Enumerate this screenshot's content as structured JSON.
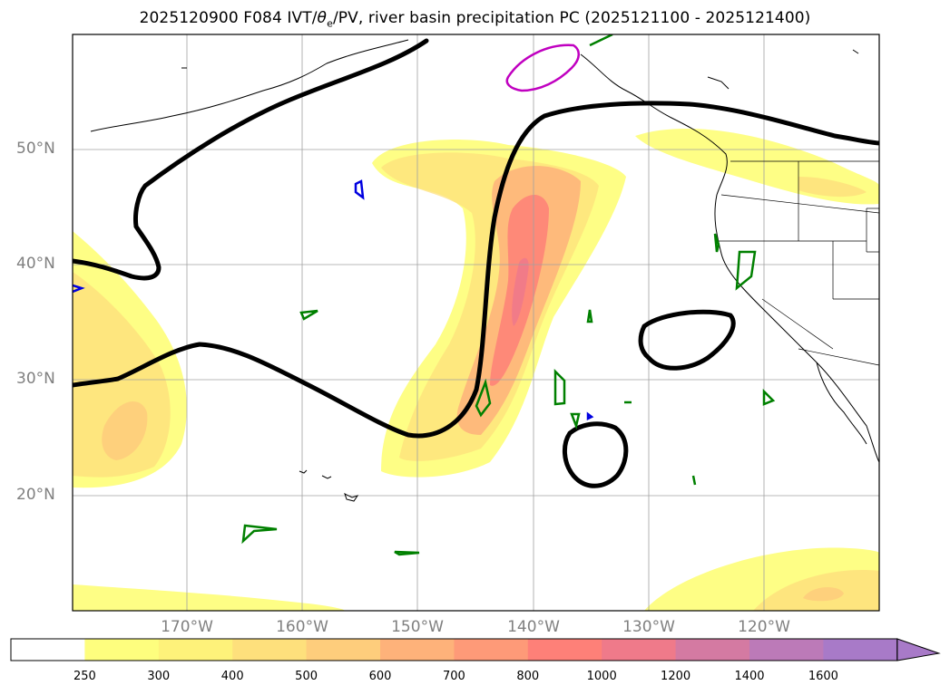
{
  "title": {
    "prefix": "2025120900 F084 IVT/",
    "theta": "θ",
    "sub": "e",
    "suffix": "/PV, river basin precipitation PC (2025121100 - 2025121400)"
  },
  "axes": {
    "lat_labels": [
      "50°N",
      "40°N",
      "30°N",
      "20°N"
    ],
    "lon_labels": [
      "170°W",
      "160°W",
      "150°W",
      "140°W",
      "130°W",
      "120°W"
    ]
  },
  "colorbar": {
    "ticks": [
      "250",
      "300",
      "400",
      "500",
      "600",
      "700",
      "800",
      "1000",
      "1200",
      "1400",
      "1600"
    ],
    "colors": [
      "#ffffff",
      "#fefe7e",
      "#fef27a",
      "#fee07c",
      "#fecd7c",
      "#feb27a",
      "#fe9a78",
      "#fe8078",
      "#ef7a8a",
      "#d47aa2",
      "#bc7ab8",
      "#a87ac8"
    ]
  },
  "chart_data": {
    "type": "map",
    "region": "North-East Pacific",
    "lon_range": [
      -180,
      -110
    ],
    "lat_range": [
      10,
      60
    ],
    "fields": [
      "IVT shading",
      "theta_e/PV black contour",
      "river basin precipitation PC contours (green, blue, magenta)"
    ]
  }
}
